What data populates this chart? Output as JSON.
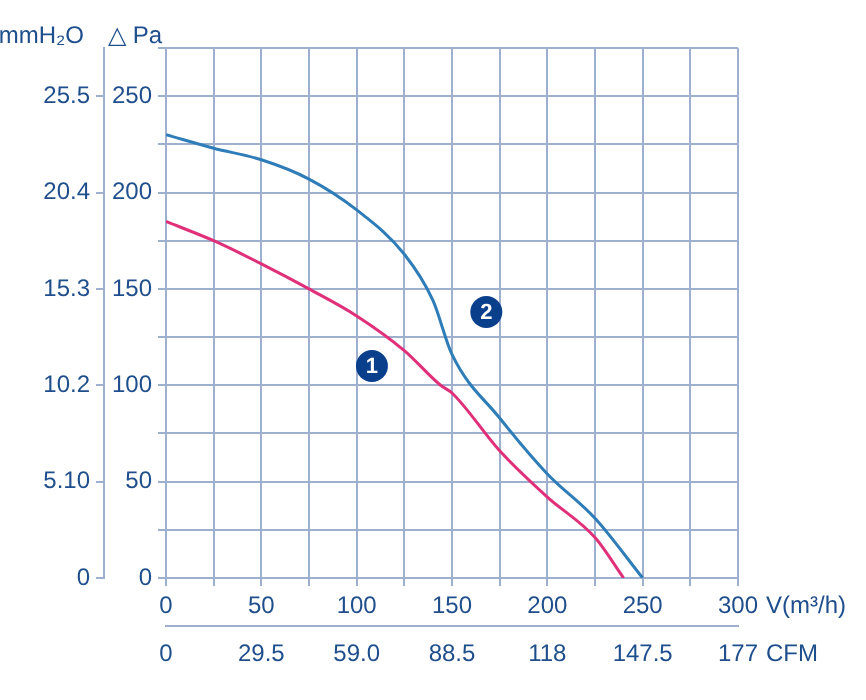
{
  "chart_data": {
    "type": "line",
    "xlabel": "V(m³/h)",
    "ylabel": "△ Pa",
    "y2label": "mmH₂O",
    "x2label": "CFM",
    "xlim": [
      0,
      300
    ],
    "xticks": [
      0,
      {
        "value": 25,
        "label": null
      },
      50,
      {
        "value": 75,
        "label": null
      },
      100,
      {
        "value": 125,
        "label": null
      },
      150,
      {
        "value": 175,
        "label": null
      },
      200,
      {
        "value": 225,
        "label": null
      },
      250,
      {
        "value": 275,
        "label": null
      },
      300
    ],
    "ylim": [
      0,
      275
    ],
    "yticks": [
      0,
      {
        "value": 25,
        "label": null
      },
      50,
      {
        "value": 75,
        "label": null
      },
      100,
      {
        "value": 125,
        "label": null
      },
      150,
      {
        "value": 175,
        "label": null
      },
      200,
      {
        "value": 225,
        "label": null
      },
      250,
      {
        "value": 275,
        "label": null
      }
    ],
    "x2lim": [
      0,
      177
    ],
    "x2ticks": [
      0,
      29.5,
      {
        "value": 59,
        "label": "59.0"
      },
      88.5,
      118,
      147.5,
      177
    ],
    "y2lim": [
      0,
      28.05
    ],
    "y2ticks": [
      0,
      {
        "value": 5.1,
        "label": "5.10"
      },
      10.2,
      15.3,
      20.4,
      25.5
    ],
    "grid": true,
    "marker": "none",
    "series": [
      {
        "color": "#2f7db8",
        "x": [
          0,
          25,
          50,
          75,
          100,
          125,
          140,
          150,
          175,
          200,
          225,
          250
        ],
        "values": [
          230,
          223,
          217,
          207,
          191,
          168,
          144,
          116,
          83,
          54,
          31,
          0
        ]
      },
      {
        "color": "#e0307a",
        "x": [
          0,
          25,
          50,
          75,
          100,
          125,
          144,
          150,
          175,
          200,
          225,
          240
        ],
        "values": [
          185,
          175,
          163,
          150,
          136,
          118,
          100,
          96,
          66,
          42,
          21,
          0
        ]
      }
    ],
    "annotations": [
      {
        "text": "1",
        "x": 108,
        "y": 110
      },
      {
        "text": "2",
        "x": 168,
        "y": 138
      }
    ]
  }
}
